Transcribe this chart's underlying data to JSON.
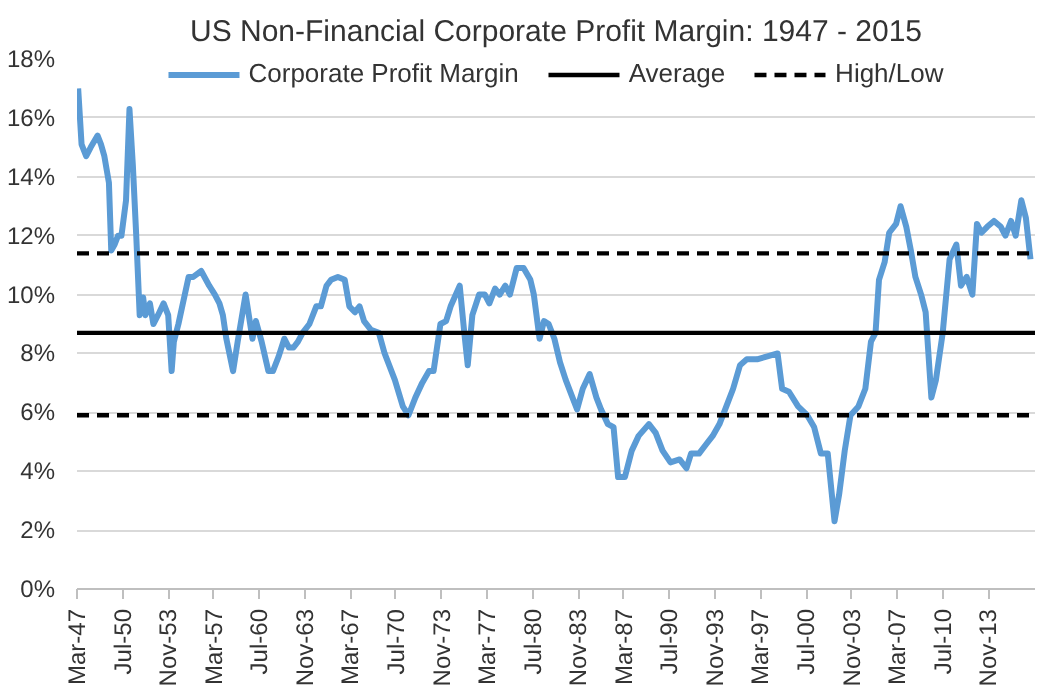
{
  "chart_data": {
    "type": "line",
    "title": "US Non-Financial Corporate Profit Margin: 1947 - 2015",
    "xlim": [
      "1947-03",
      "2017-04"
    ],
    "xticks": [
      {
        "value": "1947-03",
        "label": "Mar-47"
      },
      {
        "value": "1950-07",
        "label": "Jul-50"
      },
      {
        "value": "1953-11",
        "label": "Nov-53"
      },
      {
        "value": "1957-03",
        "label": "Mar-57"
      },
      {
        "value": "1960-07",
        "label": "Jul-60"
      },
      {
        "value": "1963-11",
        "label": "Nov-63"
      },
      {
        "value": "1967-03",
        "label": "Mar-67"
      },
      {
        "value": "1970-07",
        "label": "Jul-70"
      },
      {
        "value": "1973-11",
        "label": "Nov-73"
      },
      {
        "value": "1977-03",
        "label": "Mar-77"
      },
      {
        "value": "1980-07",
        "label": "Jul-80"
      },
      {
        "value": "1983-11",
        "label": "Nov-83"
      },
      {
        "value": "1987-03",
        "label": "Mar-87"
      },
      {
        "value": "1990-07",
        "label": "Jul-90"
      },
      {
        "value": "1993-11",
        "label": "Nov-93"
      },
      {
        "value": "1997-03",
        "label": "Mar-97"
      },
      {
        "value": "2000-07",
        "label": "Jul-00"
      },
      {
        "value": "2003-11",
        "label": "Nov-03"
      },
      {
        "value": "2007-03",
        "label": "Mar-07"
      },
      {
        "value": "2010-07",
        "label": "Jul-10"
      },
      {
        "value": "2013-11",
        "label": "Nov-13"
      }
    ],
    "ylim": [
      0,
      18
    ],
    "yticks": [
      {
        "value": 0,
        "label": "0%"
      },
      {
        "value": 2,
        "label": "2%"
      },
      {
        "value": 4,
        "label": "4%"
      },
      {
        "value": 6,
        "label": "6%"
      },
      {
        "value": 8,
        "label": "8%"
      },
      {
        "value": 10,
        "label": "10%"
      },
      {
        "value": 12,
        "label": "12%"
      },
      {
        "value": 14,
        "label": "14%"
      },
      {
        "value": 16,
        "label": "16%"
      },
      {
        "value": 18,
        "label": "18%"
      }
    ],
    "grid": "y",
    "legend": "top",
    "series": [
      {
        "name": "Corporate Profit Margin",
        "color": "#5b9bd5",
        "x": [
          "1947-04",
          "1947-07",
          "1947-11",
          "1948-03",
          "1948-09",
          "1948-12",
          "1949-03",
          "1949-07",
          "1949-09",
          "1949-12",
          "1950-03",
          "1950-06",
          "1950-10",
          "1951-01",
          "1951-04",
          "1951-07",
          "1951-10",
          "1952-01",
          "1952-03",
          "1952-07",
          "1952-10",
          "1953-02",
          "1953-07",
          "1953-11",
          "1954-02",
          "1954-04",
          "1954-08",
          "1955-05",
          "1955-09",
          "1956-04",
          "1956-11",
          "1957-04",
          "1957-08",
          "1957-11",
          "1958-02",
          "1958-08",
          "1958-12",
          "1959-07",
          "1960-01",
          "1960-04",
          "1960-09",
          "1961-03",
          "1961-07",
          "1961-12",
          "1962-05",
          "1962-09",
          "1963-01",
          "1963-05",
          "1963-09",
          "1964-03",
          "1964-09",
          "1965-01",
          "1965-06",
          "1965-10",
          "1966-04",
          "1966-10",
          "1967-02",
          "1967-07",
          "1967-11",
          "1968-03",
          "1968-09",
          "1969-04",
          "1969-09",
          "1970-06",
          "1971-01",
          "1971-06",
          "1971-12",
          "1972-06",
          "1972-12",
          "1973-04",
          "1973-10",
          "1974-03",
          "1974-07",
          "1975-03",
          "1975-07",
          "1975-10",
          "1976-02",
          "1976-08",
          "1977-01",
          "1977-05",
          "1977-10",
          "1978-02",
          "1978-07",
          "1978-11",
          "1979-05",
          "1979-11",
          "1980-05",
          "1980-08",
          "1981-01",
          "1981-05",
          "1981-09",
          "1982-02",
          "1982-07",
          "1982-12",
          "1983-06",
          "1983-10",
          "1984-03",
          "1984-09",
          "1985-03",
          "1985-07",
          "1986-01",
          "1986-06",
          "1986-10",
          "1987-04",
          "1987-10",
          "1988-04",
          "1989-01",
          "1989-07",
          "1990-01",
          "1990-08",
          "1991-04",
          "1991-10",
          "1992-02",
          "1992-09",
          "1993-03",
          "1993-09",
          "1994-03",
          "1994-09",
          "1995-03",
          "1995-09",
          "1996-03",
          "1996-12",
          "1997-09",
          "1998-06",
          "1998-10",
          "1999-04",
          "1999-12",
          "2000-08",
          "2001-02",
          "2001-08",
          "2002-02",
          "2002-08",
          "2002-12",
          "2003-05",
          "2003-10",
          "2004-05",
          "2004-11",
          "2005-04",
          "2005-08",
          "2005-11",
          "2006-04",
          "2006-08",
          "2007-02",
          "2007-06",
          "2007-11",
          "2008-03",
          "2008-07",
          "2008-12",
          "2009-04",
          "2009-09",
          "2010-01",
          "2010-07",
          "2011-01",
          "2011-07",
          "2011-11",
          "2012-04",
          "2012-09",
          "2013-01",
          "2013-05",
          "2013-10",
          "2014-04",
          "2014-10",
          "2015-02",
          "2015-07",
          "2015-11",
          "2016-04",
          "2016-08",
          "2016-12"
        ],
        "values": [
          17.0,
          15.1,
          14.7,
          15.0,
          15.4,
          15.1,
          14.7,
          13.8,
          11.5,
          11.7,
          12.0,
          12.0,
          13.2,
          16.3,
          14.4,
          12.0,
          9.3,
          9.9,
          9.3,
          9.7,
          9.0,
          9.3,
          9.7,
          9.3,
          7.4,
          8.4,
          9.0,
          10.6,
          10.6,
          10.8,
          10.3,
          10.0,
          9.7,
          9.3,
          8.5,
          7.4,
          8.4,
          10.0,
          8.5,
          9.1,
          8.4,
          7.4,
          7.4,
          7.9,
          8.5,
          8.2,
          8.2,
          8.4,
          8.7,
          9.0,
          9.6,
          9.6,
          10.3,
          10.5,
          10.6,
          10.5,
          9.6,
          9.4,
          9.6,
          9.1,
          8.8,
          8.7,
          8.0,
          7.1,
          6.2,
          5.9,
          6.5,
          7.0,
          7.4,
          7.4,
          9.0,
          9.1,
          9.6,
          10.3,
          8.7,
          7.6,
          9.3,
          10.0,
          10.0,
          9.7,
          10.2,
          10.0,
          10.3,
          10.0,
          10.9,
          10.9,
          10.5,
          10.0,
          8.5,
          9.1,
          9.0,
          8.5,
          7.7,
          7.1,
          6.5,
          6.1,
          6.8,
          7.3,
          6.5,
          6.1,
          5.6,
          5.5,
          3.8,
          3.8,
          4.7,
          5.2,
          5.6,
          5.3,
          4.7,
          4.3,
          4.4,
          4.1,
          4.6,
          4.6,
          4.9,
          5.2,
          5.6,
          6.2,
          6.8,
          7.6,
          7.8,
          7.8,
          7.9,
          8.0,
          6.8,
          6.7,
          6.2,
          5.9,
          5.5,
          4.6,
          4.6,
          2.3,
          3.2,
          4.7,
          5.9,
          6.2,
          6.8,
          8.4,
          8.7,
          10.5,
          11.1,
          12.1,
          12.4,
          13.0,
          12.3,
          11.5,
          10.6,
          10.0,
          9.4,
          6.5,
          7.1,
          8.7,
          11.2,
          11.7,
          10.3,
          10.6,
          10.0,
          12.4,
          12.1,
          12.3,
          12.5,
          12.3,
          12.0,
          12.5,
          12.0,
          13.2,
          12.6,
          11.2
        ]
      }
    ],
    "ref_lines": [
      {
        "axis": "y",
        "value": 8.7,
        "label": "Average",
        "color": "#000000",
        "line_style": "solid"
      },
      {
        "axis": "y",
        "value": 11.4,
        "label": "High/Low",
        "color": "#000000",
        "line_style": "dashed"
      },
      {
        "axis": "y",
        "value": 5.9,
        "color": "#000000",
        "line_style": "dashed"
      }
    ]
  }
}
